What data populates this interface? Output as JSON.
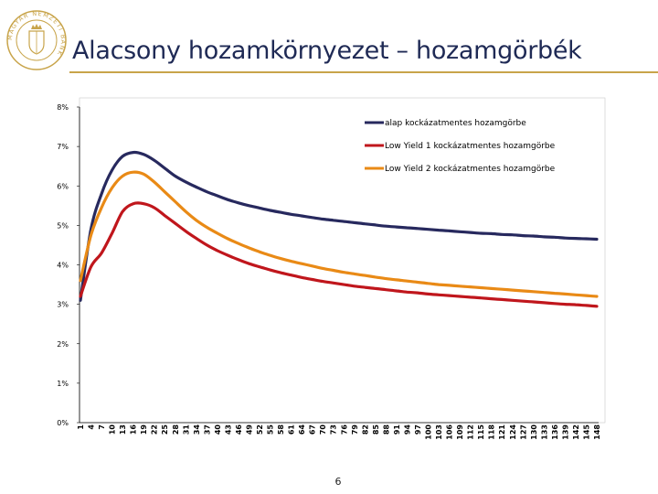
{
  "slide": {
    "title": "Alacsony hozamkörnyezet – hozamgörbék",
    "page_number": "6",
    "accent_color": "#c8a44a",
    "logo": "central-bank-seal-icon",
    "logo_text": "MAGYAR NEMZETI BANK"
  },
  "chart_data": {
    "type": "line",
    "title": "",
    "xlabel": "",
    "ylabel": "",
    "ylim": [
      0,
      8
    ],
    "yticks": [
      "0%",
      "1%",
      "2%",
      "3%",
      "4%",
      "5%",
      "6%",
      "7%",
      "8%"
    ],
    "x_tick_labels": [
      "1",
      "4",
      "7",
      "10",
      "13",
      "16",
      "19",
      "22",
      "25",
      "28",
      "31",
      "34",
      "37",
      "40",
      "43",
      "46",
      "49",
      "52",
      "55",
      "58",
      "61",
      "64",
      "67",
      "70",
      "73",
      "76",
      "79",
      "82",
      "85",
      "88",
      "91",
      "94",
      "97",
      "100",
      "103",
      "106",
      "109",
      "112",
      "115",
      "118",
      "121",
      "124",
      "127",
      "130",
      "133",
      "136",
      "139",
      "142",
      "145",
      "148"
    ],
    "grid": false,
    "legend_position": "top-right",
    "x": [
      1,
      4,
      7,
      10,
      13,
      16,
      19,
      22,
      25,
      28,
      31,
      34,
      37,
      40,
      43,
      46,
      49,
      52,
      55,
      58,
      61,
      64,
      67,
      70,
      73,
      76,
      79,
      82,
      85,
      88,
      91,
      94,
      97,
      100,
      103,
      106,
      109,
      112,
      115,
      118,
      121,
      124,
      127,
      130,
      133,
      136,
      139,
      142,
      145,
      148
    ],
    "series": [
      {
        "name": "alap kockázatmentes hozamgörbe",
        "color": "#27295e",
        "values": [
          3.1,
          4.9,
          5.8,
          6.4,
          6.75,
          6.85,
          6.8,
          6.65,
          6.45,
          6.25,
          6.1,
          5.97,
          5.85,
          5.75,
          5.65,
          5.57,
          5.5,
          5.44,
          5.38,
          5.33,
          5.28,
          5.24,
          5.2,
          5.16,
          5.13,
          5.1,
          5.07,
          5.04,
          5.01,
          4.98,
          4.96,
          4.94,
          4.92,
          4.9,
          4.88,
          4.86,
          4.84,
          4.82,
          4.8,
          4.79,
          4.77,
          4.76,
          4.74,
          4.73,
          4.71,
          4.7,
          4.68,
          4.67,
          4.66,
          4.65
        ]
      },
      {
        "name": "Low Yield 1 kockázatmentes hozamgörbe",
        "color": "#c0161c",
        "values": [
          3.2,
          3.95,
          4.3,
          4.8,
          5.35,
          5.55,
          5.55,
          5.45,
          5.25,
          5.05,
          4.85,
          4.67,
          4.5,
          4.36,
          4.24,
          4.13,
          4.03,
          3.95,
          3.87,
          3.8,
          3.74,
          3.68,
          3.63,
          3.58,
          3.54,
          3.5,
          3.46,
          3.43,
          3.4,
          3.37,
          3.34,
          3.31,
          3.29,
          3.26,
          3.24,
          3.22,
          3.2,
          3.18,
          3.16,
          3.14,
          3.12,
          3.1,
          3.08,
          3.06,
          3.04,
          3.02,
          3.0,
          2.99,
          2.97,
          2.95
        ]
      },
      {
        "name": "Low Yield 2 kockázatmentes hozamgörbe",
        "color": "#e98a16",
        "values": [
          3.6,
          4.75,
          5.45,
          5.95,
          6.25,
          6.35,
          6.3,
          6.1,
          5.85,
          5.6,
          5.35,
          5.13,
          4.95,
          4.8,
          4.66,
          4.54,
          4.43,
          4.33,
          4.24,
          4.16,
          4.09,
          4.03,
          3.97,
          3.91,
          3.86,
          3.81,
          3.77,
          3.73,
          3.69,
          3.65,
          3.62,
          3.59,
          3.56,
          3.53,
          3.5,
          3.48,
          3.46,
          3.44,
          3.42,
          3.4,
          3.38,
          3.36,
          3.34,
          3.32,
          3.3,
          3.28,
          3.26,
          3.24,
          3.22,
          3.2
        ]
      }
    ]
  }
}
